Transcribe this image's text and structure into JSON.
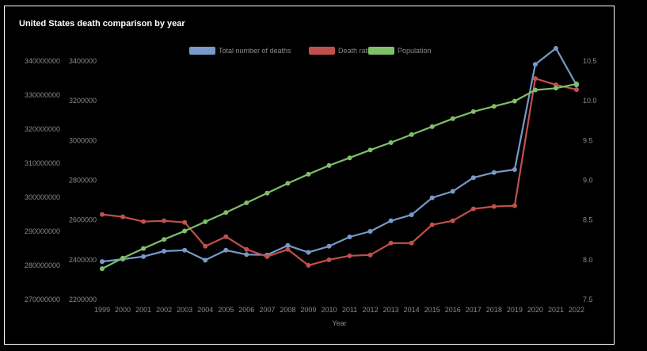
{
  "chart_data": {
    "type": "line",
    "title": "United States death comparison by year",
    "xlabel": "Year",
    "categories": [
      "1999",
      "2000",
      "2001",
      "2002",
      "2003",
      "2004",
      "2005",
      "2006",
      "2007",
      "2008",
      "2009",
      "2010",
      "2011",
      "2012",
      "2013",
      "2014",
      "2015",
      "2016",
      "2017",
      "2018",
      "2019",
      "2020",
      "2021",
      "2022"
    ],
    "axes": {
      "population_axis": {
        "ylim": [
          270000000,
          340000000
        ],
        "ticks": [
          "270000000",
          "280000000",
          "290000000",
          "300000000",
          "310000000",
          "320000000",
          "330000000",
          "340000000"
        ]
      },
      "deaths_axis": {
        "ylim": [
          2200000,
          3400000
        ],
        "ticks": [
          "2200000",
          "2400000",
          "2600000",
          "2800000",
          "3000000",
          "3200000",
          "3400000"
        ]
      },
      "rate_axis": {
        "ylim": [
          7.5,
          10.5
        ],
        "ticks": [
          "7.5",
          "8.0",
          "8.5",
          "9.0",
          "9.5",
          "10.0",
          "10.5"
        ]
      }
    },
    "series": [
      {
        "name": "Total number of deaths",
        "color": "#7899c9",
        "axis": "deaths_axis",
        "values": [
          2391000,
          2403000,
          2416000,
          2443000,
          2448000,
          2398000,
          2448000,
          2426000,
          2424000,
          2472000,
          2437000,
          2468000,
          2515000,
          2543000,
          2596000,
          2626000,
          2712000,
          2744000,
          2813000,
          2839000,
          2854000,
          3383000,
          3464000,
          3279000
        ]
      },
      {
        "name": "Death rate",
        "color": "#c0504d",
        "axis": "rate_axis",
        "values": [
          8.57,
          8.54,
          8.48,
          8.49,
          8.47,
          8.17,
          8.29,
          8.13,
          8.04,
          8.13,
          7.93,
          8.0,
          8.05,
          8.06,
          8.21,
          8.21,
          8.44,
          8.49,
          8.64,
          8.67,
          8.68,
          10.28,
          10.2,
          10.14
        ]
      },
      {
        "name": "Population",
        "color": "#7fbf6a",
        "axis": "population_axis",
        "values": [
          279040000,
          282160000,
          284970000,
          287630000,
          290110000,
          292810000,
          295520000,
          298380000,
          301230000,
          304090000,
          306770000,
          309330000,
          311580000,
          313880000,
          316060000,
          318390000,
          320740000,
          323070000,
          325150000,
          326690000,
          328240000,
          331500000,
          332030000,
          333290000
        ]
      }
    ],
    "legend_position": "top-center",
    "grid": false
  }
}
